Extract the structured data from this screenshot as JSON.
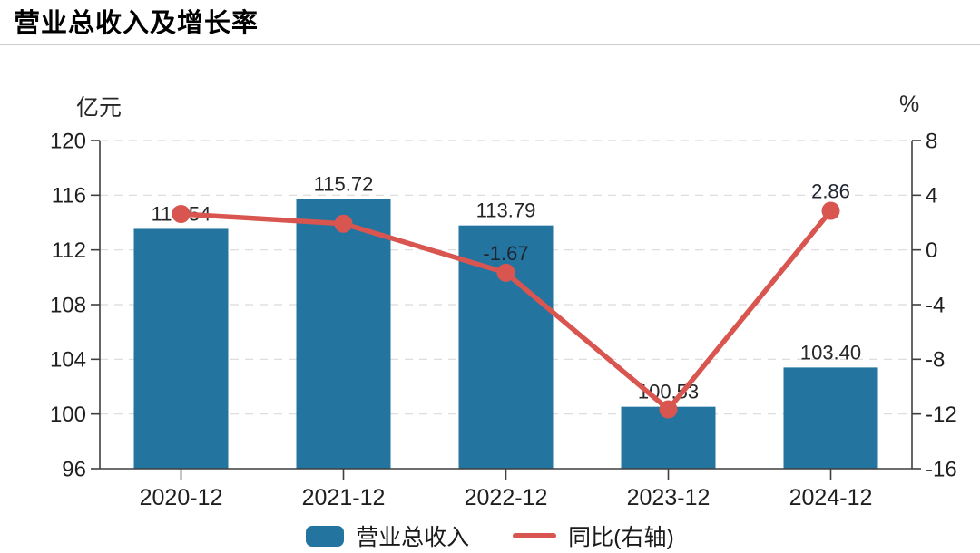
{
  "header": {
    "title": "营业总收入及增长率"
  },
  "chart_data": {
    "type": "bar+line",
    "title": "营业总收入及增长率",
    "categories": [
      "2020-12",
      "2021-12",
      "2022-12",
      "2023-12",
      "2024-12"
    ],
    "series": [
      {
        "name": "营业总收入",
        "type": "bar",
        "axis": "left",
        "values": [
          113.54,
          115.72,
          113.79,
          100.53,
          103.4
        ],
        "value_labels": [
          "113.54",
          "115.72",
          "113.79",
          "100.53",
          "103.40"
        ],
        "color": "#2375a0"
      },
      {
        "name": "同比(右轴)",
        "type": "line",
        "axis": "right",
        "values": [
          2.63,
          1.92,
          -1.67,
          -11.66,
          2.86
        ],
        "value_labels": [
          "",
          "",
          "-1.67",
          "",
          "2.86"
        ],
        "color": "#d85550"
      }
    ],
    "left_axis": {
      "unit": "亿元",
      "min": 96,
      "max": 120,
      "ticks": [
        120,
        116,
        112,
        108,
        104,
        100,
        96
      ]
    },
    "right_axis": {
      "unit": "%",
      "min": -16,
      "max": 8,
      "ticks": [
        8,
        4,
        0,
        -4,
        -8,
        -12,
        -16
      ]
    },
    "grid": {
      "horizontal_dashed": true,
      "color": "#d9d9d9",
      "legend_position": "bottom-center"
    }
  },
  "legend": {
    "items": [
      {
        "label": "营业总收入",
        "swatch": "bar",
        "color": "#2375a0"
      },
      {
        "label": "同比(右轴)",
        "swatch": "line",
        "color": "#d85550"
      }
    ]
  },
  "colors": {
    "bar": "#2375a0",
    "line": "#d85550",
    "axis": "#3f3f3f",
    "grid": "#d9d9d9",
    "label_text": "#1f1f1f",
    "divider": "#cccccc"
  }
}
